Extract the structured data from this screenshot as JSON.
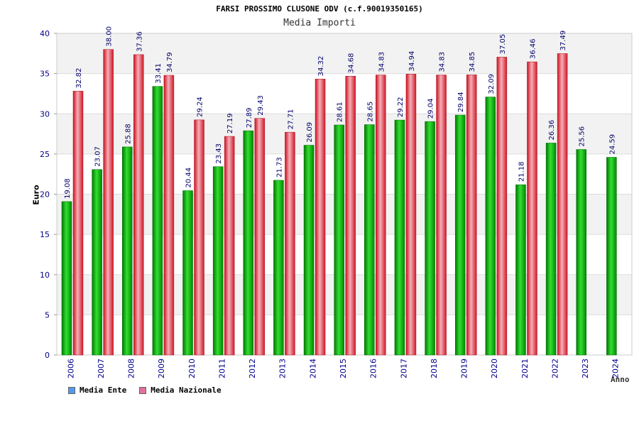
{
  "chart_data": {
    "type": "bar",
    "title": "FARSI PROSSIMO CLUSONE ODV (c.f.90019350165)",
    "subtitle": "Media Importi",
    "xlabel": "Anno",
    "ylabel": "Euro",
    "ylim": [
      0,
      40
    ],
    "yticks": [
      0,
      5,
      10,
      15,
      20,
      25,
      30,
      35,
      40
    ],
    "categories": [
      "2006",
      "2007",
      "2008",
      "2009",
      "2010",
      "2011",
      "2012",
      "2013",
      "2014",
      "2015",
      "2016",
      "2017",
      "2018",
      "2019",
      "2020",
      "2021",
      "2022",
      "2023",
      "2024"
    ],
    "series": [
      {
        "name": "Media Ente",
        "color": "#00aa00",
        "legend_color": "#5599ee",
        "values": [
          19.08,
          23.07,
          25.88,
          33.41,
          20.44,
          23.43,
          27.89,
          21.73,
          26.09,
          28.61,
          28.65,
          29.22,
          29.04,
          29.84,
          32.09,
          21.18,
          26.36,
          25.56,
          24.59
        ]
      },
      {
        "name": "Media Nazionale",
        "color": "#e0202a",
        "legend_color": "#e070a0",
        "values": [
          32.82,
          38.0,
          37.36,
          34.79,
          29.24,
          27.19,
          29.43,
          27.71,
          34.32,
          34.68,
          34.83,
          34.94,
          34.83,
          34.85,
          37.05,
          36.46,
          37.49,
          null,
          null
        ]
      }
    ],
    "data_labels": {
      "Media Ente": [
        "19.08",
        "23.07",
        "25.88",
        "33.41",
        "20.44",
        "23.43",
        "27.89",
        "21.73",
        "26.09",
        "28.61",
        "28.65",
        "29.22",
        "29.04",
        "29.84",
        "32.09",
        "21.18",
        "26.36",
        "25.56",
        "24.59"
      ],
      "Media Nazionale": [
        "32.82",
        "38.00",
        "37.36",
        "34.79",
        "29.24",
        "27.19",
        "29.43",
        "27.71",
        "34.32",
        "34.68",
        "34.83",
        "34.94",
        "34.83",
        "34.85",
        "37.05",
        "36.46",
        "37.49",
        "",
        ""
      ]
    }
  },
  "legend": [
    {
      "label": "Media Ente",
      "color": "#5599ee"
    },
    {
      "label": "Media Nazionale",
      "color": "#e070a0"
    }
  ]
}
